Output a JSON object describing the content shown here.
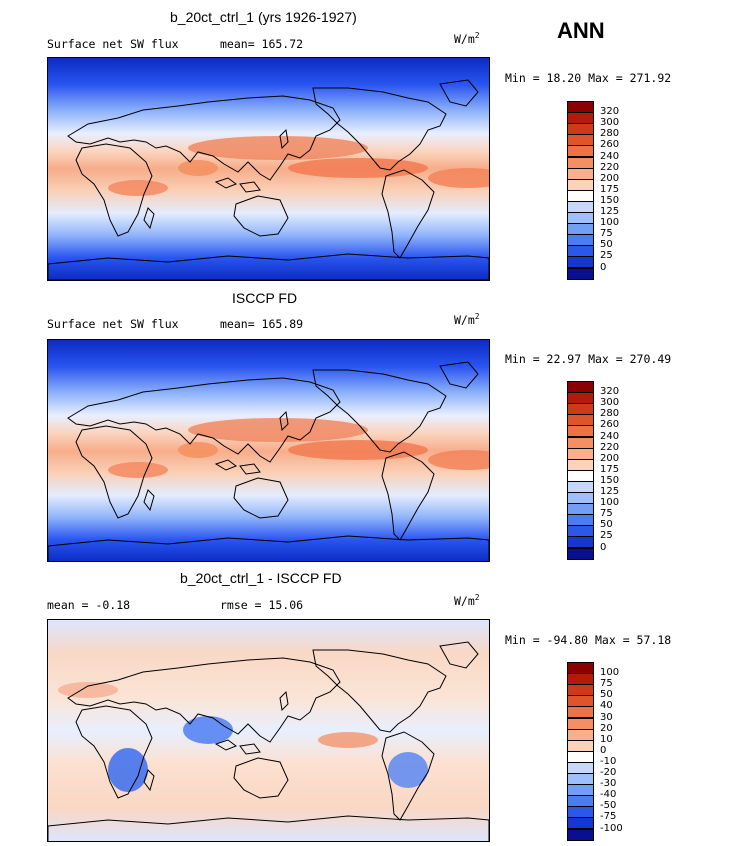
{
  "season": "ANN",
  "colors": {
    "ocean_gradient": [
      "#0b2bc4",
      "#2a55f0",
      "#6c97fb",
      "#bcd4fd",
      "#f4f7ff"
    ],
    "warm": [
      "#fde0cc",
      "#f9b394",
      "#f4845c",
      "#e85c33"
    ]
  },
  "panels": [
    {
      "title": "b_20ct_ctrl_1 (yrs 1926-1927)",
      "left_label": "Surface net SW flux",
      "right_label": "mean= 165.72",
      "units_base": "W/m",
      "units_exp": "2",
      "min_max": "Min =   18.20 Max = 271.92",
      "kind": "abs"
    },
    {
      "title": "ISCCP FD",
      "left_label": "Surface net SW flux",
      "right_label": "mean= 165.89",
      "units_base": "W/m",
      "units_exp": "2",
      "min_max": "Min =  22.97 Max = 270.49",
      "kind": "abs"
    },
    {
      "title": "b_20ct_ctrl_1 - ISCCP FD",
      "left_label": "mean =  -0.18",
      "right_label": "rmse =  15.06",
      "units_base": "W/m",
      "units_exp": "2",
      "min_max": "Min = -94.80 Max =  57.18",
      "kind": "diff"
    }
  ],
  "colorbars": {
    "abs": {
      "labels": [
        "320",
        "300",
        "280",
        "260",
        "240",
        "220",
        "200",
        "175",
        "150",
        "125",
        "100",
        "75",
        "50",
        "25",
        "0"
      ],
      "colors": [
        "#8b0000",
        "#b31a0c",
        "#cc3a1a",
        "#e0542b",
        "#ef7146",
        "#f48f64",
        "#f8b08c",
        "#fcd2ba",
        "#ffffff",
        "#c5d8fc",
        "#9ebffa",
        "#729ef5",
        "#4b7df0",
        "#2b58e8",
        "#1636d0",
        "#08108f"
      ]
    },
    "diff": {
      "labels": [
        "100",
        "75",
        "50",
        "40",
        "30",
        "20",
        "10",
        "0",
        "-10",
        "-20",
        "-30",
        "-40",
        "-50",
        "-75",
        "-100"
      ],
      "colors": [
        "#8b0000",
        "#b31a0c",
        "#cc3a1a",
        "#e0542b",
        "#ef7146",
        "#f48f64",
        "#f8b08c",
        "#fcd2ba",
        "#ffffff",
        "#c5d8fc",
        "#9ebffa",
        "#729ef5",
        "#4b7df0",
        "#2b58e8",
        "#1636d0",
        "#08108f"
      ]
    }
  }
}
